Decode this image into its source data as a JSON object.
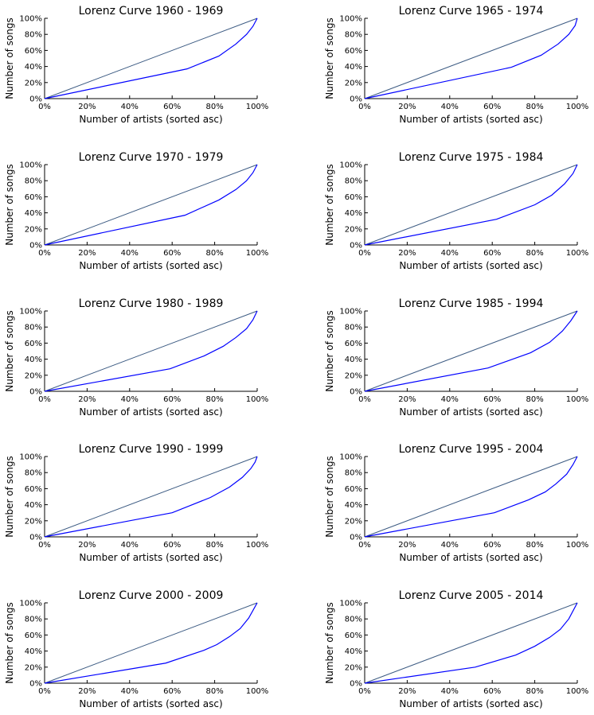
{
  "colors": {
    "equality_line": "#3b5a82",
    "lorenz_curve": "#0000ff",
    "axes": "#000000",
    "background": "#ffffff"
  },
  "chart_data": [
    {
      "type": "line",
      "title": "Lorenz Curve 1960 - 1969",
      "xlabel": "Number of artists (sorted asc)",
      "ylabel": "Number of songs",
      "xlim": [
        0,
        1
      ],
      "ylim": [
        0,
        1
      ],
      "x_ticks": [
        "0%",
        "20%",
        "40%",
        "60%",
        "80%",
        "100%"
      ],
      "y_ticks": [
        "0%",
        "20%",
        "40%",
        "60%",
        "80%",
        "100%"
      ],
      "grid": false,
      "series": [
        {
          "role": "equality",
          "x": [
            0,
            1
          ],
          "y": [
            0,
            1
          ]
        },
        {
          "role": "lorenz",
          "x": [
            0,
            0.67,
            0.82,
            0.9,
            0.95,
            0.98,
            1.0
          ],
          "y": [
            0,
            0.37,
            0.53,
            0.68,
            0.8,
            0.9,
            1.0
          ]
        }
      ]
    },
    {
      "type": "line",
      "title": "Lorenz Curve 1965 - 1974",
      "xlabel": "Number of artists (sorted asc)",
      "ylabel": "Number of songs",
      "xlim": [
        0,
        1
      ],
      "ylim": [
        0,
        1
      ],
      "x_ticks": [
        "0%",
        "20%",
        "40%",
        "60%",
        "80%",
        "100%"
      ],
      "y_ticks": [
        "0%",
        "20%",
        "40%",
        "60%",
        "80%",
        "100%"
      ],
      "grid": false,
      "series": [
        {
          "role": "equality",
          "x": [
            0,
            1
          ],
          "y": [
            0,
            1
          ]
        },
        {
          "role": "lorenz",
          "x": [
            0,
            0.69,
            0.83,
            0.91,
            0.96,
            0.99,
            1.0
          ],
          "y": [
            0,
            0.39,
            0.54,
            0.68,
            0.8,
            0.91,
            1.0
          ]
        }
      ]
    },
    {
      "type": "line",
      "title": "Lorenz Curve 1970 - 1979",
      "xlabel": "Number of artists (sorted asc)",
      "ylabel": "Number of songs",
      "xlim": [
        0,
        1
      ],
      "ylim": [
        0,
        1
      ],
      "x_ticks": [
        "0%",
        "20%",
        "40%",
        "60%",
        "80%",
        "100%"
      ],
      "y_ticks": [
        "0%",
        "20%",
        "40%",
        "60%",
        "80%",
        "100%"
      ],
      "grid": false,
      "series": [
        {
          "role": "equality",
          "x": [
            0,
            1
          ],
          "y": [
            0,
            1
          ]
        },
        {
          "role": "lorenz",
          "x": [
            0,
            0.66,
            0.82,
            0.9,
            0.95,
            0.98,
            1.0
          ],
          "y": [
            0,
            0.37,
            0.56,
            0.69,
            0.8,
            0.9,
            1.0
          ]
        }
      ]
    },
    {
      "type": "line",
      "title": "Lorenz Curve 1975 - 1984",
      "xlabel": "Number of artists (sorted asc)",
      "ylabel": "Number of songs",
      "xlim": [
        0,
        1
      ],
      "ylim": [
        0,
        1
      ],
      "x_ticks": [
        "0%",
        "20%",
        "40%",
        "60%",
        "80%",
        "100%"
      ],
      "y_ticks": [
        "0%",
        "20%",
        "40%",
        "60%",
        "80%",
        "100%"
      ],
      "grid": false,
      "series": [
        {
          "role": "equality",
          "x": [
            0,
            1
          ],
          "y": [
            0,
            1
          ]
        },
        {
          "role": "lorenz",
          "x": [
            0,
            0.62,
            0.8,
            0.88,
            0.94,
            0.98,
            1.0
          ],
          "y": [
            0,
            0.32,
            0.5,
            0.62,
            0.76,
            0.89,
            1.0
          ]
        }
      ]
    },
    {
      "type": "line",
      "title": "Lorenz Curve 1980 - 1989",
      "xlabel": "Number of artists (sorted asc)",
      "ylabel": "Number of songs",
      "xlim": [
        0,
        1
      ],
      "ylim": [
        0,
        1
      ],
      "x_ticks": [
        "0%",
        "20%",
        "40%",
        "60%",
        "80%",
        "100%"
      ],
      "y_ticks": [
        "0%",
        "20%",
        "40%",
        "60%",
        "80%",
        "100%"
      ],
      "grid": false,
      "series": [
        {
          "role": "equality",
          "x": [
            0,
            1
          ],
          "y": [
            0,
            1
          ]
        },
        {
          "role": "lorenz",
          "x": [
            0,
            0.59,
            0.75,
            0.84,
            0.9,
            0.95,
            0.98,
            1.0
          ],
          "y": [
            0,
            0.28,
            0.44,
            0.56,
            0.67,
            0.78,
            0.89,
            1.0
          ]
        }
      ]
    },
    {
      "type": "line",
      "title": "Lorenz Curve 1985 - 1994",
      "xlabel": "Number of artists (sorted asc)",
      "ylabel": "Number of songs",
      "xlim": [
        0,
        1
      ],
      "ylim": [
        0,
        1
      ],
      "x_ticks": [
        "0%",
        "20%",
        "40%",
        "60%",
        "80%",
        "100%"
      ],
      "y_ticks": [
        "0%",
        "20%",
        "40%",
        "60%",
        "80%",
        "100%"
      ],
      "grid": false,
      "series": [
        {
          "role": "equality",
          "x": [
            0,
            1
          ],
          "y": [
            0,
            1
          ]
        },
        {
          "role": "lorenz",
          "x": [
            0,
            0.58,
            0.78,
            0.87,
            0.93,
            0.97,
            1.0
          ],
          "y": [
            0,
            0.29,
            0.48,
            0.61,
            0.75,
            0.88,
            1.0
          ]
        }
      ]
    },
    {
      "type": "line",
      "title": "Lorenz Curve 1990 - 1999",
      "xlabel": "Number of artists (sorted asc)",
      "ylabel": "Number of songs",
      "xlim": [
        0,
        1
      ],
      "ylim": [
        0,
        1
      ],
      "x_ticks": [
        "0%",
        "20%",
        "40%",
        "60%",
        "80%",
        "100%"
      ],
      "y_ticks": [
        "0%",
        "20%",
        "40%",
        "60%",
        "80%",
        "100%"
      ],
      "grid": false,
      "series": [
        {
          "role": "equality",
          "x": [
            0,
            1
          ],
          "y": [
            0,
            1
          ]
        },
        {
          "role": "lorenz",
          "x": [
            0,
            0.6,
            0.78,
            0.87,
            0.93,
            0.97,
            0.99,
            1.0
          ],
          "y": [
            0,
            0.3,
            0.49,
            0.62,
            0.74,
            0.85,
            0.93,
            1.0
          ]
        }
      ]
    },
    {
      "type": "line",
      "title": "Lorenz Curve 1995 - 2004",
      "xlabel": "Number of artists (sorted asc)",
      "ylabel": "Number of songs",
      "xlim": [
        0,
        1
      ],
      "ylim": [
        0,
        1
      ],
      "x_ticks": [
        "0%",
        "20%",
        "40%",
        "60%",
        "80%",
        "100%"
      ],
      "y_ticks": [
        "0%",
        "20%",
        "40%",
        "60%",
        "80%",
        "100%"
      ],
      "grid": false,
      "series": [
        {
          "role": "equality",
          "x": [
            0,
            1
          ],
          "y": [
            0,
            1
          ]
        },
        {
          "role": "lorenz",
          "x": [
            0,
            0.61,
            0.77,
            0.85,
            0.9,
            0.95,
            0.98,
            1.0
          ],
          "y": [
            0,
            0.3,
            0.46,
            0.56,
            0.66,
            0.78,
            0.9,
            1.0
          ]
        }
      ]
    },
    {
      "type": "line",
      "title": "Lorenz Curve 2000 - 2009",
      "xlabel": "Number of artists (sorted asc)",
      "ylabel": "Number of songs",
      "xlim": [
        0,
        1
      ],
      "ylim": [
        0,
        1
      ],
      "x_ticks": [
        "0%",
        "20%",
        "40%",
        "60%",
        "80%",
        "100%"
      ],
      "y_ticks": [
        "0%",
        "20%",
        "40%",
        "60%",
        "80%",
        "100%"
      ],
      "grid": false,
      "series": [
        {
          "role": "equality",
          "x": [
            0,
            1
          ],
          "y": [
            0,
            1
          ]
        },
        {
          "role": "lorenz",
          "x": [
            0,
            0.57,
            0.75,
            0.81,
            0.87,
            0.92,
            0.96,
            1.0
          ],
          "y": [
            0,
            0.25,
            0.41,
            0.48,
            0.58,
            0.68,
            0.81,
            1.0
          ]
        }
      ]
    },
    {
      "type": "line",
      "title": "Lorenz Curve 2005 - 2014",
      "xlabel": "Number of artists (sorted asc)",
      "ylabel": "Number of songs",
      "xlim": [
        0,
        1
      ],
      "ylim": [
        0,
        1
      ],
      "x_ticks": [
        "0%",
        "20%",
        "40%",
        "60%",
        "80%",
        "100%"
      ],
      "y_ticks": [
        "0%",
        "20%",
        "40%",
        "60%",
        "80%",
        "100%"
      ],
      "grid": false,
      "series": [
        {
          "role": "equality",
          "x": [
            0,
            1
          ],
          "y": [
            0,
            1
          ]
        },
        {
          "role": "lorenz",
          "x": [
            0,
            0.52,
            0.71,
            0.8,
            0.87,
            0.92,
            0.96,
            1.0
          ],
          "y": [
            0,
            0.2,
            0.35,
            0.46,
            0.57,
            0.67,
            0.8,
            1.0
          ]
        }
      ]
    }
  ]
}
